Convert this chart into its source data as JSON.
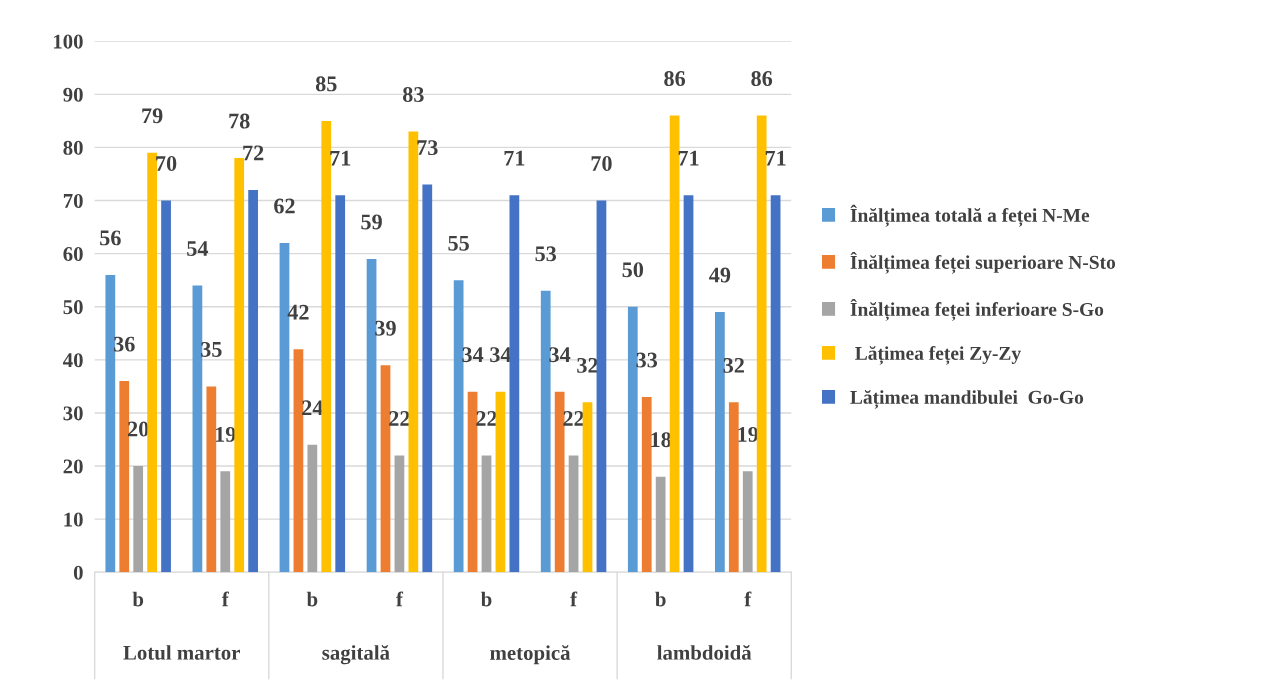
{
  "chart_data": {
    "type": "bar",
    "categories": [
      "b",
      "f",
      "b",
      "f",
      "b",
      "f",
      "b",
      "f"
    ],
    "annotations": [
      "Lotul martor",
      "sagitală",
      "metopică",
      "lambdoidă"
    ],
    "series": [
      {
        "name": "Înălțimea totală a feței N-Me",
        "color": "#5b9bd5",
        "values": [
          56,
          54,
          62,
          59,
          55,
          53,
          50,
          49
        ]
      },
      {
        "name": "Înălțimea feței superioare N-Sto",
        "color": "#ed7d31",
        "values": [
          36,
          35,
          42,
          39,
          34,
          34,
          33,
          32
        ]
      },
      {
        "name": "Înălțimea feței inferioare S-Go",
        "color": "#a5a5a5",
        "values": [
          20,
          19,
          24,
          22,
          22,
          22,
          18,
          19
        ]
      },
      {
        "name": " Lățimea feței Zy-Zy",
        "color": "#ffc000",
        "values": [
          79,
          78,
          85,
          83,
          34,
          32,
          86,
          86
        ]
      },
      {
        "name": "Lățimea mandibulei  Go-Go",
        "color": "#4472c4",
        "values": [
          70,
          72,
          71,
          73,
          71,
          70,
          71,
          71
        ]
      }
    ],
    "ylim": [
      0,
      100
    ],
    "yticks": [
      0,
      10,
      20,
      30,
      40,
      50,
      60,
      70,
      80,
      90,
      100
    ],
    "grid": "y",
    "legend": "right",
    "data_labels": true
  }
}
